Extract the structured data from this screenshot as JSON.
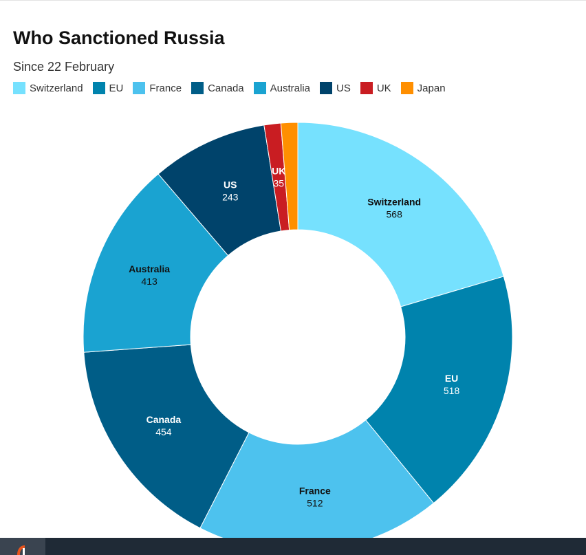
{
  "chart_data": {
    "type": "pie",
    "title": "Who Sanctioned Russia",
    "subtitle": "Since 22 February",
    "legend_position": "top-left",
    "slices": [
      {
        "label": "Switzerland",
        "value": 568,
        "color": "#76e1fe",
        "label_color": "#111111"
      },
      {
        "label": "EU",
        "value": 518,
        "color": "#0083ad",
        "label_color": "#ffffff"
      },
      {
        "label": "France",
        "value": 512,
        "color": "#4dc2ee",
        "label_color": "#111111"
      },
      {
        "label": "Canada",
        "value": 454,
        "color": "#005d87",
        "label_color": "#ffffff"
      },
      {
        "label": "Australia",
        "value": 413,
        "color": "#1aa3d1",
        "label_color": "#111111"
      },
      {
        "label": "US",
        "value": 243,
        "color": "#00436b",
        "label_color": "#ffffff"
      },
      {
        "label": "UK",
        "value": 35,
        "color": "#c91d22",
        "label_color": "#ffffff"
      },
      {
        "label": "Japan",
        "value": 35,
        "color": "#ff8f00",
        "label_color": "#ffffff",
        "show_label": false
      }
    ]
  }
}
